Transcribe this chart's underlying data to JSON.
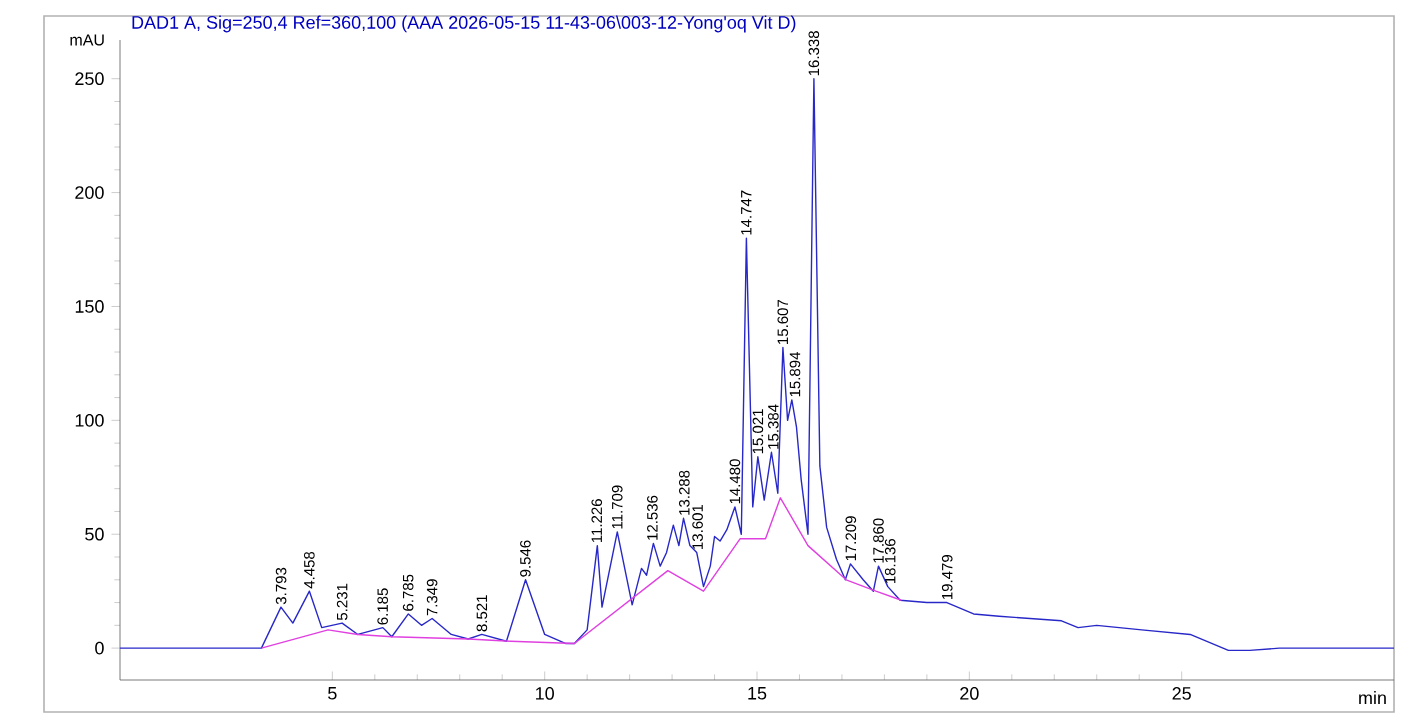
{
  "chart_data": {
    "type": "line",
    "title": "DAD1 A, Sig=250,4 Ref=360,100 (AAA 2026-05-15 11-43-06\\003-12-Yong'oq Vit D)",
    "xlabel": "min",
    "ylabel": "mAU",
    "xlim": [
      0,
      30
    ],
    "ylim": [
      -14,
      267
    ],
    "xticks": [
      5,
      10,
      15,
      20,
      25
    ],
    "yticks": [
      0,
      50,
      100,
      150,
      200,
      250
    ],
    "marker": "none",
    "line_style": "solid",
    "grid": false,
    "series": [
      {
        "color": "#2828c8",
        "x": [
          0,
          3.33,
          3.79,
          4.07,
          4.46,
          4.75,
          5.23,
          5.6,
          6.19,
          6.4,
          6.79,
          7.1,
          7.35,
          7.8,
          8.2,
          8.52,
          9.1,
          9.55,
          10.0,
          10.5,
          10.7,
          11.0,
          11.24,
          11.35,
          11.71,
          12.06,
          12.28,
          12.4,
          12.56,
          12.72,
          12.87,
          13.03,
          13.16,
          13.27,
          13.42,
          13.58,
          13.74,
          13.9,
          14.0,
          14.13,
          14.29,
          14.48,
          14.63,
          14.75,
          14.9,
          15.02,
          15.17,
          15.34,
          15.49,
          15.61,
          15.72,
          15.82,
          15.93,
          16.04,
          16.2,
          16.34,
          16.48,
          16.64,
          16.87,
          17.08,
          17.2,
          17.5,
          17.74,
          17.86,
          18.08,
          18.37,
          19.0,
          19.47,
          20.1,
          20.7,
          22.17,
          22.56,
          23.0,
          24.06,
          25.2,
          26.1,
          26.6,
          27.3,
          30
        ],
        "values": [
          0,
          0,
          18,
          11,
          25,
          9,
          11,
          6,
          9,
          5,
          15,
          10,
          13,
          6,
          4,
          6,
          3,
          30,
          6,
          2,
          2,
          8,
          45,
          18,
          51,
          19,
          35,
          32,
          46,
          36,
          42,
          54,
          45,
          57,
          45,
          42,
          27,
          36,
          49,
          47,
          52,
          62,
          50,
          180,
          62,
          84,
          65,
          86,
          68,
          132,
          100,
          109,
          97,
          74,
          50,
          250,
          80,
          53,
          39,
          30,
          37,
          30,
          25,
          36,
          27,
          21,
          20,
          20,
          15,
          14,
          12,
          9,
          10,
          8,
          6,
          -1,
          -1,
          0,
          0
        ]
      },
      {
        "color": "#e040e0",
        "x": [
          3.33,
          4.9,
          5.6,
          6.4,
          8.2,
          9.2,
          10.7,
          12.9,
          13.74,
          14.6,
          15.2,
          15.55,
          16.2,
          17.1,
          17.8,
          18.4
        ],
        "values": [
          0,
          8,
          6,
          5,
          4,
          3,
          2,
          34,
          25,
          48,
          48,
          66,
          45,
          30,
          25,
          21
        ]
      }
    ],
    "annotations": [
      {
        "text": "3.793",
        "x": 3.793,
        "y": 18
      },
      {
        "text": "4.458",
        "x": 4.458,
        "y": 25
      },
      {
        "text": "5.231",
        "x": 5.231,
        "y": 11
      },
      {
        "text": "6.185",
        "x": 6.185,
        "y": 9
      },
      {
        "text": "6.785",
        "x": 6.785,
        "y": 15
      },
      {
        "text": "7.349",
        "x": 7.349,
        "y": 13
      },
      {
        "text": "8.521",
        "x": 8.521,
        "y": 6
      },
      {
        "text": "9.546",
        "x": 9.546,
        "y": 30
      },
      {
        "text": "11.226",
        "x": 11.226,
        "y": 45
      },
      {
        "text": "11.709",
        "x": 11.709,
        "y": 51
      },
      {
        "text": "12.536",
        "x": 12.536,
        "y": 46
      },
      {
        "text": "13.288",
        "x": 13.288,
        "y": 57
      },
      {
        "text": "13.601",
        "x": 13.601,
        "y": 42
      },
      {
        "text": "14.480",
        "x": 14.48,
        "y": 62
      },
      {
        "text": "14.747",
        "x": 14.747,
        "y": 180
      },
      {
        "text": "15.021",
        "x": 15.021,
        "y": 84
      },
      {
        "text": "15.384",
        "x": 15.384,
        "y": 86
      },
      {
        "text": "15.607",
        "x": 15.607,
        "y": 132
      },
      {
        "text": "15.894",
        "x": 15.894,
        "y": 109
      },
      {
        "text": "16.338",
        "x": 16.338,
        "y": 250
      },
      {
        "text": "17.209",
        "x": 17.209,
        "y": 37
      },
      {
        "text": "17.860",
        "x": 17.86,
        "y": 36
      },
      {
        "text": "18.136",
        "x": 18.136,
        "y": 27
      },
      {
        "text": "19.479",
        "x": 19.479,
        "y": 20
      }
    ]
  }
}
